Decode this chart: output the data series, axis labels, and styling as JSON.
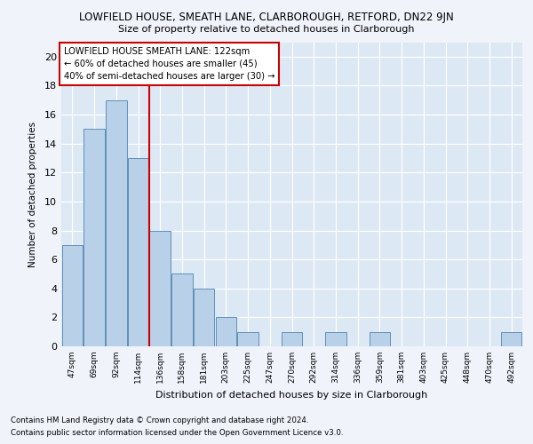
{
  "title1": "LOWFIELD HOUSE, SMEATH LANE, CLARBOROUGH, RETFORD, DN22 9JN",
  "title2": "Size of property relative to detached houses in Clarborough",
  "xlabel": "Distribution of detached houses by size in Clarborough",
  "ylabel": "Number of detached properties",
  "categories": [
    "47sqm",
    "69sqm",
    "92sqm",
    "114sqm",
    "136sqm",
    "158sqm",
    "181sqm",
    "203sqm",
    "225sqm",
    "247sqm",
    "270sqm",
    "292sqm",
    "314sqm",
    "336sqm",
    "359sqm",
    "381sqm",
    "403sqm",
    "425sqm",
    "448sqm",
    "470sqm",
    "492sqm"
  ],
  "values": [
    7,
    15,
    17,
    13,
    8,
    5,
    4,
    2,
    1,
    0,
    1,
    0,
    1,
    0,
    1,
    0,
    0,
    0,
    0,
    0,
    1
  ],
  "bar_color": "#b8d0e8",
  "bar_edge_color": "#6090b8",
  "vline_x": 3.5,
  "vline_color": "#cc0000",
  "annotation_title": "LOWFIELD HOUSE SMEATH LANE: 122sqm",
  "annotation_line1": "← 60% of detached houses are smaller (45)",
  "annotation_line2": "40% of semi-detached houses are larger (30) →",
  "annotation_box_color": "#cc0000",
  "ylim": [
    0,
    21
  ],
  "yticks": [
    0,
    2,
    4,
    6,
    8,
    10,
    12,
    14,
    16,
    18,
    20
  ],
  "footnote1": "Contains HM Land Registry data © Crown copyright and database right 2024.",
  "footnote2": "Contains public sector information licensed under the Open Government Licence v3.0.",
  "fig_bg_color": "#f0f4fa",
  "plot_bg_color": "#dce8f4"
}
